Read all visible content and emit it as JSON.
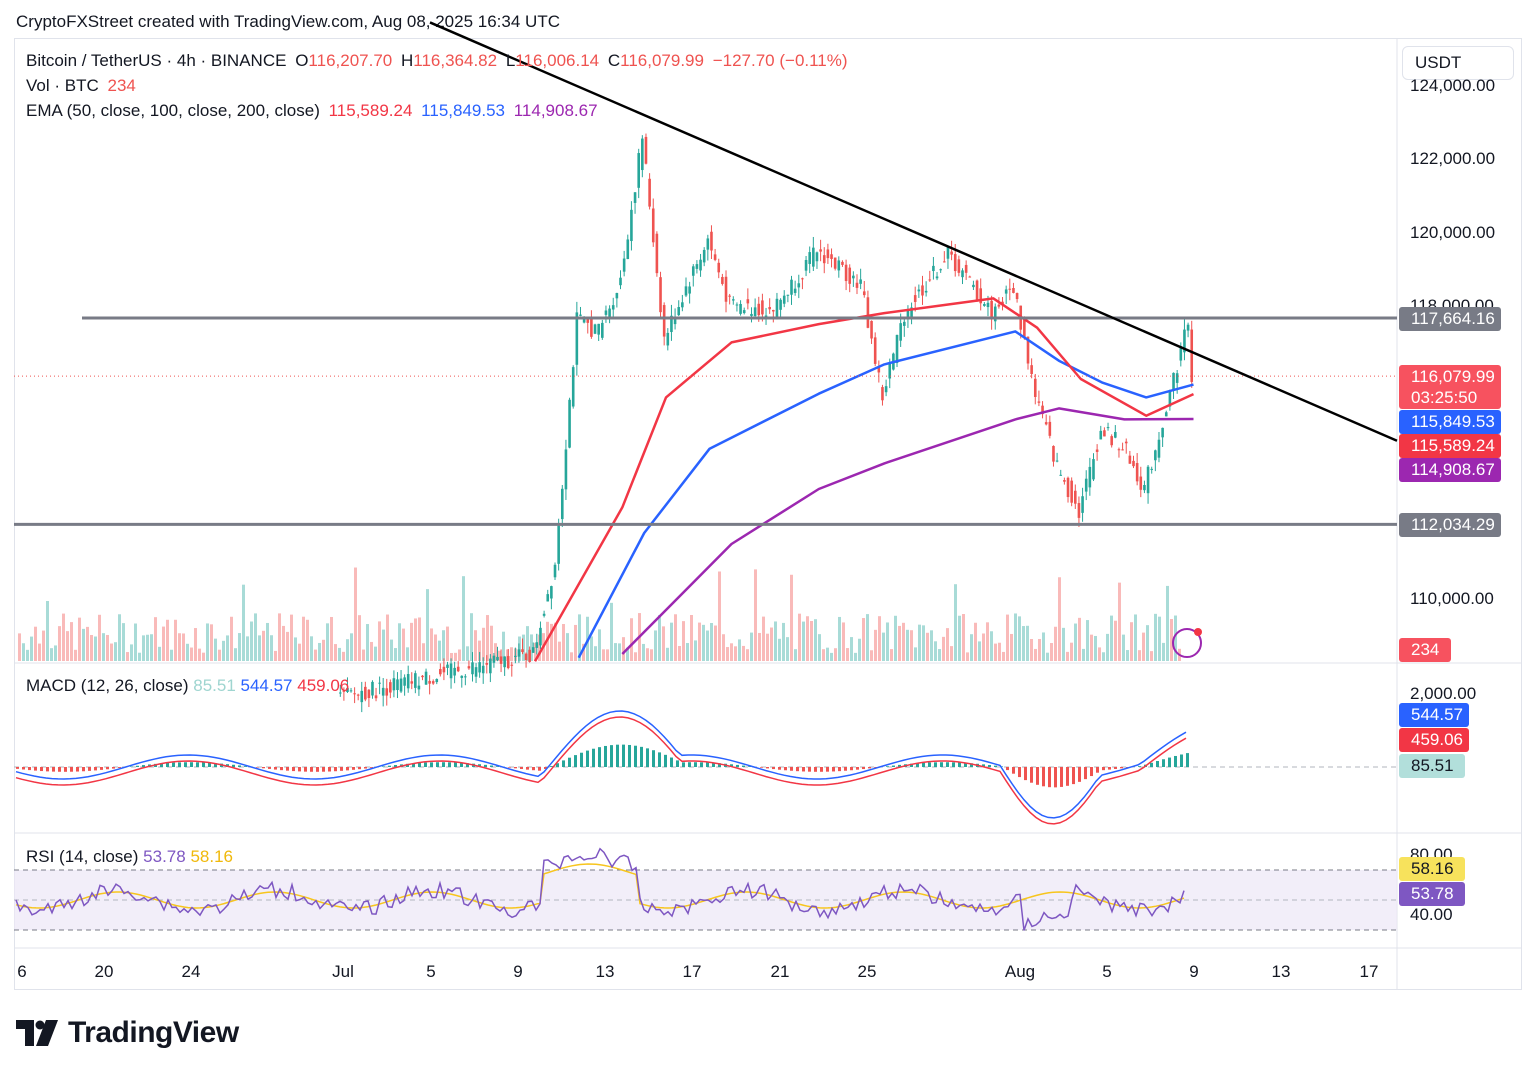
{
  "attribution": "CryptoFXStreet created with TradingView.com, Aug 08, 2025 16:34 UTC",
  "header": {
    "symbol": "Bitcoin / TetherUS · 4h · BINANCE",
    "open_label": "O",
    "open": "116,207.70",
    "high_label": "H",
    "high": "116,364.82",
    "low_label": "L",
    "low": "116,006.14",
    "close_label": "C",
    "close": "116,079.99",
    "change": "−127.70 (−0.11%)",
    "vol_label": "Vol · BTC",
    "vol_value": "234",
    "ema_label": "EMA (50, close, 100, close, 200, close)",
    "ema50": "115,589.24",
    "ema100": "115,849.53",
    "ema200": "114,908.67"
  },
  "currency": "USDT",
  "price_axis_labels": [
    "124,000.00",
    "122,000.00",
    "120,000.00",
    "118,000.00",
    "110,000.00"
  ],
  "tags": {
    "resistance": "117,664.16",
    "last_price": "116,079.99",
    "countdown": "03:25:50",
    "ema100": "115,849.53",
    "ema50": "115,589.24",
    "ema200": "114,908.67",
    "support": "112,034.29",
    "volume": "234"
  },
  "macd": {
    "label": "MACD (12, 26, close)",
    "hist": "85.51",
    "macd": "544.57",
    "signal": "459.06",
    "axis_label": "2,000.00"
  },
  "rsi": {
    "label": "RSI (14, close)",
    "rsi": "53.78",
    "ma": "58.16",
    "axis_top": "80.00",
    "axis_low": "40.00"
  },
  "date_axis": [
    "6",
    "20",
    "24",
    "Jul",
    "5",
    "9",
    "13",
    "17",
    "21",
    "25",
    "Aug",
    "5",
    "9",
    "13",
    "17"
  ],
  "logo_text": "TradingView",
  "colors": {
    "up": "#26a69a",
    "down": "#ef5350",
    "ema50": "#f23645",
    "ema100": "#2962ff",
    "ema200": "#9c27b0",
    "level": "#787b86",
    "trend": "#000000",
    "rsi_ma": "#f7c51d",
    "rsi": "#7e57c2"
  },
  "chart_data": {
    "type": "candlestick",
    "symbol": "BTC/USDT",
    "timeframe": "4h",
    "y_range": [
      108500,
      124500
    ],
    "horizontal_levels": [
      117664.16,
      112034.29
    ],
    "trendline": {
      "from": {
        "date": "2025-07-14",
        "price": 123200
      },
      "to": {
        "date": "2025-08-16",
        "price": 114700
      }
    },
    "price_path": [
      {
        "date": "2025-06-30",
        "price": 107300
      },
      {
        "date": "2025-07-09",
        "price": 108500
      },
      {
        "date": "2025-07-10",
        "price": 111000
      },
      {
        "date": "2025-07-11",
        "price": 117600
      },
      {
        "date": "2025-07-12",
        "price": 117300
      },
      {
        "date": "2025-07-13",
        "price": 118700
      },
      {
        "date": "2025-07-14",
        "price": 122600
      },
      {
        "date": "2025-07-15",
        "price": 117100
      },
      {
        "date": "2025-07-16",
        "price": 118500
      },
      {
        "date": "2025-07-17",
        "price": 119800
      },
      {
        "date": "2025-07-18",
        "price": 118000
      },
      {
        "date": "2025-07-20",
        "price": 117900
      },
      {
        "date": "2025-07-22",
        "price": 119500
      },
      {
        "date": "2025-07-24",
        "price": 118600
      },
      {
        "date": "2025-07-25",
        "price": 115500
      },
      {
        "date": "2025-07-26",
        "price": 117800
      },
      {
        "date": "2025-07-28",
        "price": 119400
      },
      {
        "date": "2025-07-30",
        "price": 117800
      },
      {
        "date": "2025-07-31",
        "price": 118500
      },
      {
        "date": "2025-08-01",
        "price": 115600
      },
      {
        "date": "2025-08-02",
        "price": 113600
      },
      {
        "date": "2025-08-03",
        "price": 112400
      },
      {
        "date": "2025-08-04",
        "price": 114600
      },
      {
        "date": "2025-08-05",
        "price": 114200
      },
      {
        "date": "2025-08-06",
        "price": 113000
      },
      {
        "date": "2025-08-07",
        "price": 115200
      },
      {
        "date": "2025-08-08",
        "price": 117600
      },
      {
        "date": "2025-08-08T16:00",
        "price": 116080
      }
    ],
    "ema50": [
      {
        "date": "2025-07-09",
        "price": 108300
      },
      {
        "date": "2025-07-13",
        "price": 112500
      },
      {
        "date": "2025-07-15",
        "price": 115500
      },
      {
        "date": "2025-07-18",
        "price": 117000
      },
      {
        "date": "2025-07-22",
        "price": 117500
      },
      {
        "date": "2025-07-25",
        "price": 117800
      },
      {
        "date": "2025-07-30",
        "price": 118200
      },
      {
        "date": "2025-08-01",
        "price": 117400
      },
      {
        "date": "2025-08-03",
        "price": 116000
      },
      {
        "date": "2025-08-06",
        "price": 115000
      },
      {
        "date": "2025-08-08T16:00",
        "price": 115589.24
      }
    ],
    "ema100": [
      {
        "date": "2025-07-11",
        "price": 108400
      },
      {
        "date": "2025-07-14",
        "price": 111800
      },
      {
        "date": "2025-07-17",
        "price": 114100
      },
      {
        "date": "2025-07-22",
        "price": 115600
      },
      {
        "date": "2025-07-25",
        "price": 116400
      },
      {
        "date": "2025-07-31",
        "price": 117300
      },
      {
        "date": "2025-08-02",
        "price": 116500
      },
      {
        "date": "2025-08-04",
        "price": 115900
      },
      {
        "date": "2025-08-06",
        "price": 115500
      },
      {
        "date": "2025-08-08T16:00",
        "price": 115849.53
      }
    ],
    "ema200": [
      {
        "date": "2025-07-13",
        "price": 108500
      },
      {
        "date": "2025-07-18",
        "price": 111500
      },
      {
        "date": "2025-07-22",
        "price": 113000
      },
      {
        "date": "2025-07-25",
        "price": 113700
      },
      {
        "date": "2025-07-31",
        "price": 114900
      },
      {
        "date": "2025-08-02",
        "price": 115200
      },
      {
        "date": "2025-08-05",
        "price": 114900
      },
      {
        "date": "2025-08-08T16:00",
        "price": 114908.67
      }
    ],
    "macd_value": 544.57,
    "macd_signal": 459.06,
    "macd_hist": 85.51,
    "rsi_value": 53.78,
    "rsi_ma": 58.16,
    "rsi_bands": [
      70,
      50,
      30
    ]
  }
}
